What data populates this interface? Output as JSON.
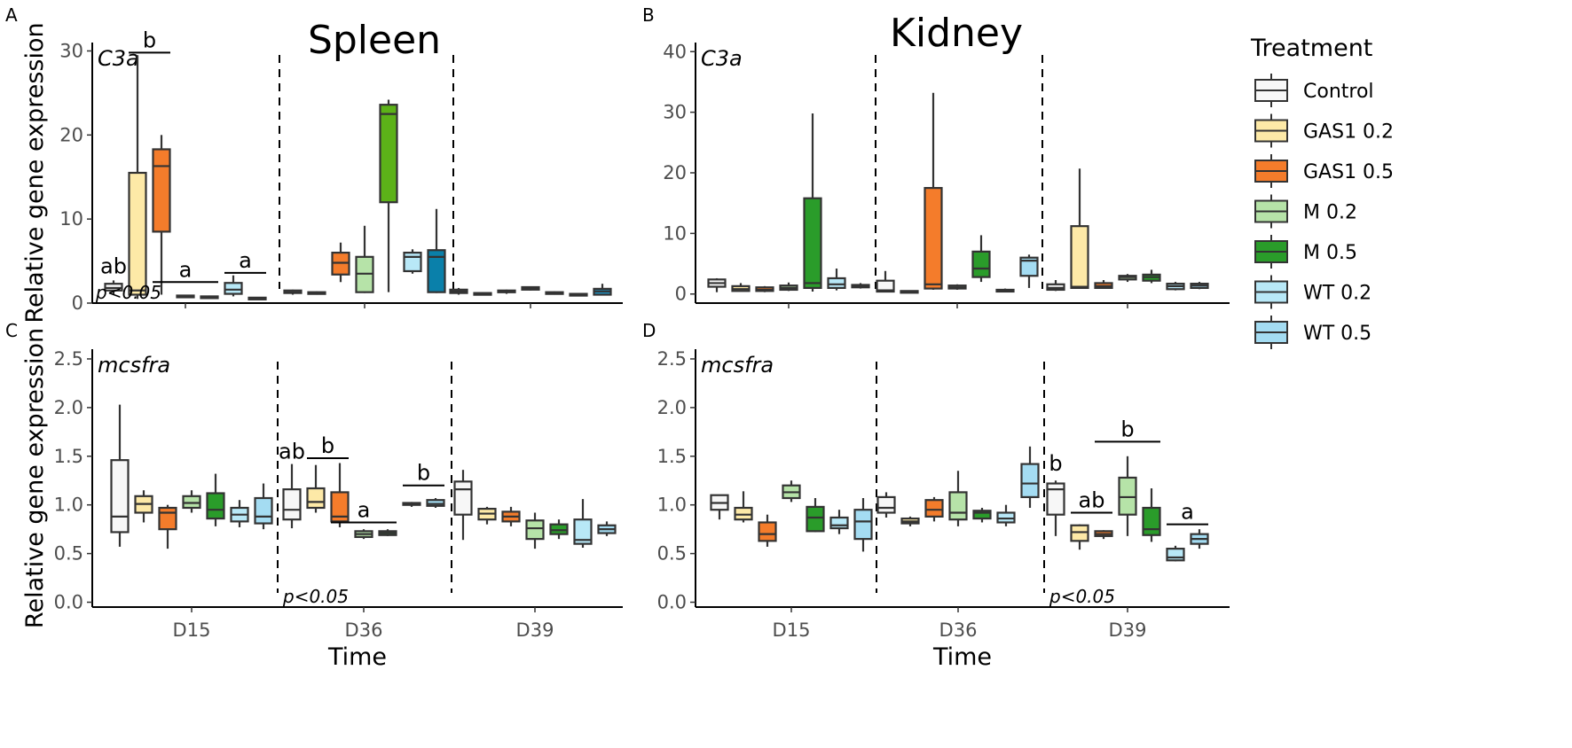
{
  "chart_data": [
    {
      "panel": "A",
      "tissue_title": "Spleen",
      "gene": "C3a",
      "type": "box",
      "ylabel": "Relative gene expression",
      "xlabel": "",
      "ylim": [
        0,
        31
      ],
      "yticks": [
        0,
        10,
        20,
        30
      ],
      "categories": [
        "D15",
        "D36",
        "D39"
      ],
      "pvalue_label": "p<0.05",
      "pvalue_time": "D15",
      "series": [
        {
          "name": "Control",
          "boxes": [
            [
              1.0,
              1.5,
              1.8,
              2.3,
              2.7
            ],
            [
              1.0,
              1.2,
              1.3,
              1.5,
              1.6
            ],
            [
              1.0,
              1.2,
              1.4,
              1.6,
              1.8
            ]
          ]
        },
        {
          "name": "GAS1 0.2",
          "boxes": [
            [
              0.5,
              1.0,
              1.5,
              15.5,
              29.5
            ],
            [
              1.0,
              1.1,
              1.2,
              1.3,
              1.4
            ],
            [
              0.9,
              1.0,
              1.1,
              1.2,
              1.3
            ]
          ]
        },
        {
          "name": "GAS1 0.5",
          "boxes": [
            [
              1.0,
              8.5,
              16.3,
              18.3,
              20.0
            ],
            [
              2.5,
              3.4,
              4.8,
              6.0,
              7.2
            ],
            [
              1.1,
              1.3,
              1.4,
              1.5,
              1.6
            ]
          ]
        },
        {
          "name": "M 0.2",
          "boxes": [
            [
              0.6,
              0.7,
              0.8,
              0.9,
              1.0
            ],
            [
              1.2,
              1.3,
              3.5,
              5.5,
              9.2
            ],
            [
              1.5,
              1.6,
              1.7,
              1.9,
              2.0
            ]
          ]
        },
        {
          "name": "M 0.5",
          "boxes": [
            [
              0.6,
              0.7,
              0.75,
              0.8,
              0.9
            ],
            [
              1.3,
              12.0,
              22.5,
              23.6,
              24.2
            ],
            [
              1.0,
              1.1,
              1.2,
              1.3,
              1.4
            ]
          ]
        },
        {
          "name": "WT 0.2",
          "boxes": [
            [
              0.8,
              1.1,
              1.6,
              2.4,
              3.3
            ],
            [
              3.5,
              3.8,
              5.5,
              6.0,
              6.4
            ],
            [
              0.8,
              0.9,
              1.0,
              1.1,
              1.2
            ]
          ]
        },
        {
          "name": "WT 0.5",
          "boxes": [
            [
              0.5,
              0.55,
              0.6,
              0.65,
              0.7
            ],
            [
              1.2,
              1.3,
              5.5,
              6.3,
              11.2
            ],
            [
              0.9,
              1.0,
              1.4,
              1.7,
              2.3
            ]
          ]
        }
      ],
      "significance": [
        {
          "label": "ab",
          "time": "D15",
          "from": 0,
          "to": 0,
          "y": 2.9
        },
        {
          "label": "b",
          "time": "D15",
          "from": 1,
          "to": 2,
          "y": 29.8
        },
        {
          "label": "a",
          "time": "D15",
          "from": 2,
          "to": 4,
          "y": 2.5
        },
        {
          "label": "a",
          "time": "D15",
          "from": 5,
          "to": 6,
          "y": 3.6
        }
      ]
    },
    {
      "panel": "B",
      "tissue_title": "Kidney",
      "gene": "C3a",
      "type": "box",
      "ylabel": "",
      "xlabel": "",
      "ylim": [
        -1.5,
        41.5
      ],
      "yticks": [
        0,
        10,
        20,
        30,
        40
      ],
      "categories": [
        "D15",
        "D36",
        "D39"
      ],
      "series": [
        {
          "name": "Control",
          "boxes": [
            [
              0.3,
              1.2,
              1.8,
              2.4,
              2.6
            ],
            [
              0.3,
              0.4,
              0.6,
              2.2,
              3.8
            ],
            [
              0.5,
              0.7,
              1.0,
              1.6,
              2.3
            ]
          ]
        },
        {
          "name": "GAS1 0.2",
          "boxes": [
            [
              0.4,
              0.5,
              0.8,
              1.3,
              1.8
            ],
            [
              0.3,
              0.35,
              0.4,
              0.5,
              0.6
            ],
            [
              0.9,
              1.0,
              1.2,
              11.2,
              20.7
            ]
          ]
        },
        {
          "name": "GAS1 0.5",
          "boxes": [
            [
              0.3,
              0.5,
              0.7,
              1.1,
              1.3
            ],
            [
              0.7,
              0.9,
              1.6,
              17.5,
              33.2
            ],
            [
              0.9,
              1.0,
              1.3,
              1.8,
              2.3
            ]
          ]
        },
        {
          "name": "M 0.2",
          "boxes": [
            [
              0.5,
              0.7,
              1.0,
              1.4,
              1.9
            ],
            [
              0.7,
              0.9,
              1.1,
              1.4,
              1.6
            ],
            [
              2.0,
              2.4,
              2.8,
              3.0,
              3.3
            ]
          ]
        },
        {
          "name": "M 0.5",
          "boxes": [
            [
              0.4,
              1.0,
              1.8,
              15.8,
              29.8
            ],
            [
              2.0,
              2.8,
              4.2,
              7.0,
              9.7
            ],
            [
              1.8,
              2.2,
              2.8,
              3.2,
              4.0
            ]
          ]
        },
        {
          "name": "WT 0.2",
          "boxes": [
            [
              0.6,
              1.0,
              1.6,
              2.6,
              4.2
            ],
            [
              0.4,
              0.5,
              0.6,
              0.7,
              0.9
            ],
            [
              0.6,
              0.8,
              1.3,
              1.7,
              2.0
            ]
          ]
        },
        {
          "name": "WT 0.5",
          "boxes": [
            [
              0.9,
              1.1,
              1.3,
              1.5,
              1.8
            ],
            [
              1.0,
              3.0,
              5.5,
              6.0,
              6.5
            ],
            [
              0.8,
              1.0,
              1.4,
              1.7,
              2.0
            ]
          ]
        }
      ]
    },
    {
      "panel": "C",
      "tissue_title": "",
      "gene": "mcsfra",
      "type": "box",
      "ylabel": "Relative gene expression",
      "xlabel": "Time",
      "ylim": [
        -0.05,
        2.6
      ],
      "yticks": [
        0.0,
        0.5,
        1.0,
        1.5,
        2.0,
        2.5
      ],
      "yticklabels": [
        "0.0",
        "0.5",
        "1.0",
        "1.5",
        "2.0",
        "2.5"
      ],
      "categories": [
        "D15",
        "D36",
        "D39"
      ],
      "pvalue_label": "p<0.05",
      "pvalue_time": "D36",
      "series": [
        {
          "name": "Control",
          "boxes": [
            [
              0.57,
              0.72,
              0.88,
              1.46,
              2.03
            ],
            [
              0.76,
              0.85,
              0.95,
              1.16,
              1.42
            ],
            [
              0.64,
              0.9,
              1.16,
              1.24,
              1.36
            ]
          ]
        },
        {
          "name": "GAS1 0.2",
          "boxes": [
            [
              0.82,
              0.92,
              1.01,
              1.09,
              1.15
            ],
            [
              0.92,
              0.97,
              1.03,
              1.17,
              1.41
            ],
            [
              0.8,
              0.85,
              0.91,
              0.96,
              0.98
            ]
          ]
        },
        {
          "name": "GAS1 0.5",
          "boxes": [
            [
              0.55,
              0.75,
              0.92,
              0.97,
              1.0
            ],
            [
              0.77,
              0.83,
              0.88,
              1.13,
              1.43
            ],
            [
              0.78,
              0.83,
              0.88,
              0.93,
              0.98
            ]
          ]
        },
        {
          "name": "M 0.2",
          "boxes": [
            [
              0.92,
              0.97,
              1.02,
              1.09,
              1.15
            ],
            [
              0.65,
              0.67,
              0.7,
              0.73,
              0.75
            ],
            [
              0.55,
              0.65,
              0.76,
              0.84,
              0.92
            ]
          ]
        },
        {
          "name": "M 0.5",
          "boxes": [
            [
              0.78,
              0.86,
              0.95,
              1.12,
              1.32
            ],
            [
              0.68,
              0.69,
              0.71,
              0.73,
              0.75
            ],
            [
              0.65,
              0.7,
              0.74,
              0.8,
              0.85
            ]
          ]
        },
        {
          "name": "WT 0.2",
          "boxes": [
            [
              0.77,
              0.83,
              0.9,
              0.97,
              1.05
            ],
            [
              0.98,
              1.0,
              1.01,
              1.02,
              1.03
            ],
            [
              0.56,
              0.6,
              0.64,
              0.85,
              1.06
            ]
          ]
        },
        {
          "name": "WT 0.5",
          "boxes": [
            [
              0.75,
              0.81,
              0.88,
              1.07,
              1.22
            ],
            [
              0.97,
              0.99,
              1.01,
              1.05,
              1.07
            ],
            [
              0.68,
              0.71,
              0.75,
              0.79,
              0.83
            ]
          ]
        }
      ],
      "significance": [
        {
          "label": "ab",
          "time": "D36",
          "from": 0,
          "to": 0,
          "y": 1.42
        },
        {
          "label": "b",
          "time": "D36",
          "from": 1,
          "to": 2,
          "y": 1.48
        },
        {
          "label": "a",
          "time": "D36",
          "from": 2,
          "to": 4,
          "y": 0.82
        },
        {
          "label": "b",
          "time": "D36",
          "from": 5,
          "to": 6,
          "y": 1.2
        }
      ]
    },
    {
      "panel": "D",
      "tissue_title": "",
      "gene": "mcsfra",
      "type": "box",
      "ylabel": "",
      "xlabel": "Time",
      "ylim": [
        -0.05,
        2.6
      ],
      "yticks": [
        0.0,
        0.5,
        1.0,
        1.5,
        2.0,
        2.5
      ],
      "yticklabels": [
        "0.0",
        "0.5",
        "1.0",
        "1.5",
        "2.0",
        "2.5"
      ],
      "categories": [
        "D15",
        "D36",
        "D39"
      ],
      "pvalue_label": "p<0.05",
      "pvalue_time": "D39",
      "series": [
        {
          "name": "Control",
          "boxes": [
            [
              0.85,
              0.95,
              1.02,
              1.1,
              1.1
            ],
            [
              0.87,
              0.92,
              0.97,
              1.08,
              1.13
            ],
            [
              0.68,
              0.9,
              1.16,
              1.22,
              1.25
            ]
          ]
        },
        {
          "name": "GAS1 0.2",
          "boxes": [
            [
              0.82,
              0.85,
              0.9,
              0.97,
              1.14
            ],
            [
              0.78,
              0.81,
              0.83,
              0.86,
              0.88
            ],
            [
              0.54,
              0.63,
              0.72,
              0.79,
              0.8
            ]
          ]
        },
        {
          "name": "GAS1 0.5",
          "boxes": [
            [
              0.57,
              0.63,
              0.7,
              0.82,
              0.9
            ],
            [
              0.83,
              0.88,
              0.95,
              1.05,
              1.08
            ],
            [
              0.65,
              0.68,
              0.7,
              0.73,
              0.74
            ]
          ]
        },
        {
          "name": "M 0.2",
          "boxes": [
            [
              1.03,
              1.07,
              1.13,
              1.2,
              1.25
            ],
            [
              0.78,
              0.85,
              0.92,
              1.13,
              1.35
            ],
            [
              0.68,
              0.9,
              1.08,
              1.28,
              1.5
            ]
          ]
        },
        {
          "name": "M 0.5",
          "boxes": [
            [
              0.72,
              0.73,
              0.87,
              0.98,
              1.07
            ],
            [
              0.82,
              0.86,
              0.92,
              0.94,
              0.97
            ],
            [
              0.62,
              0.69,
              0.75,
              0.97,
              1.17
            ]
          ]
        },
        {
          "name": "WT 0.2",
          "boxes": [
            [
              0.7,
              0.76,
              0.79,
              0.87,
              0.95
            ],
            [
              0.78,
              0.82,
              0.86,
              0.92,
              1.0
            ],
            [
              0.42,
              0.43,
              0.46,
              0.55,
              0.58
            ]
          ]
        },
        {
          "name": "WT 0.5",
          "boxes": [
            [
              0.52,
              0.65,
              0.83,
              0.95,
              1.07
            ],
            [
              0.97,
              1.08,
              1.22,
              1.42,
              1.6
            ],
            [
              0.55,
              0.6,
              0.65,
              0.7,
              0.75
            ]
          ]
        }
      ],
      "significance": [
        {
          "label": "b",
          "time": "D39",
          "from": 0,
          "to": 0,
          "y": 1.3
        },
        {
          "label": "ab",
          "time": "D39",
          "from": 1,
          "to": 2,
          "y": 0.92
        },
        {
          "label": "b",
          "time": "D39",
          "from": 2,
          "to": 4,
          "y": 1.65
        },
        {
          "label": "a",
          "time": "D39",
          "from": 5,
          "to": 6,
          "y": 0.8
        }
      ]
    }
  ],
  "legend": {
    "title": "Treatment",
    "items": [
      {
        "label": "Control",
        "color": "#f7f7f7"
      },
      {
        "label": "GAS1 0.2",
        "color": "#fde9a7"
      },
      {
        "label": "GAS1 0.5",
        "color": "#f47c2b"
      },
      {
        "label": "M 0.2",
        "color": "#b6e3a8"
      },
      {
        "label": "M 0.5",
        "color": "#2a9c2a"
      },
      {
        "label": "WT 0.2",
        "color": "#b8e8f7"
      },
      {
        "label": "WT 0.5",
        "color": "#a4dcf2"
      }
    ]
  },
  "palette_overrides": [
    {
      "panel": "A",
      "time": "D36",
      "series": "M 0.5",
      "color": "#5cb218"
    },
    {
      "panel": "A",
      "time": "D36",
      "series": "WT 0.5",
      "color": "#0a80aa"
    },
    {
      "panel": "A",
      "time": "D39",
      "series": "WT 0.5",
      "color": "#1e8fbf"
    }
  ]
}
